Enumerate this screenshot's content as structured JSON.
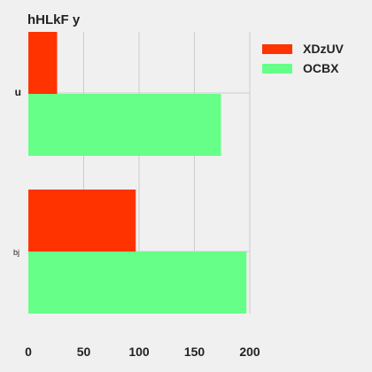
{
  "chart_data": {
    "type": "bar",
    "orientation": "horizontal",
    "title": "hHLkF y",
    "xlabel": "",
    "ylabel": "",
    "categories": [
      "u",
      "bj"
    ],
    "series": [
      {
        "name": "XDzUV",
        "color": "#ff3300",
        "values": [
          26,
          97
        ]
      },
      {
        "name": "OCBX",
        "color": "#66ff88",
        "values": [
          174,
          197
        ]
      }
    ],
    "xlim": [
      0,
      200
    ],
    "xticks": [
      0,
      50,
      100,
      150,
      200
    ],
    "grid": true,
    "legend": "top-right",
    "background": "#f0f0f0",
    "grid_color": "#cccccc"
  }
}
